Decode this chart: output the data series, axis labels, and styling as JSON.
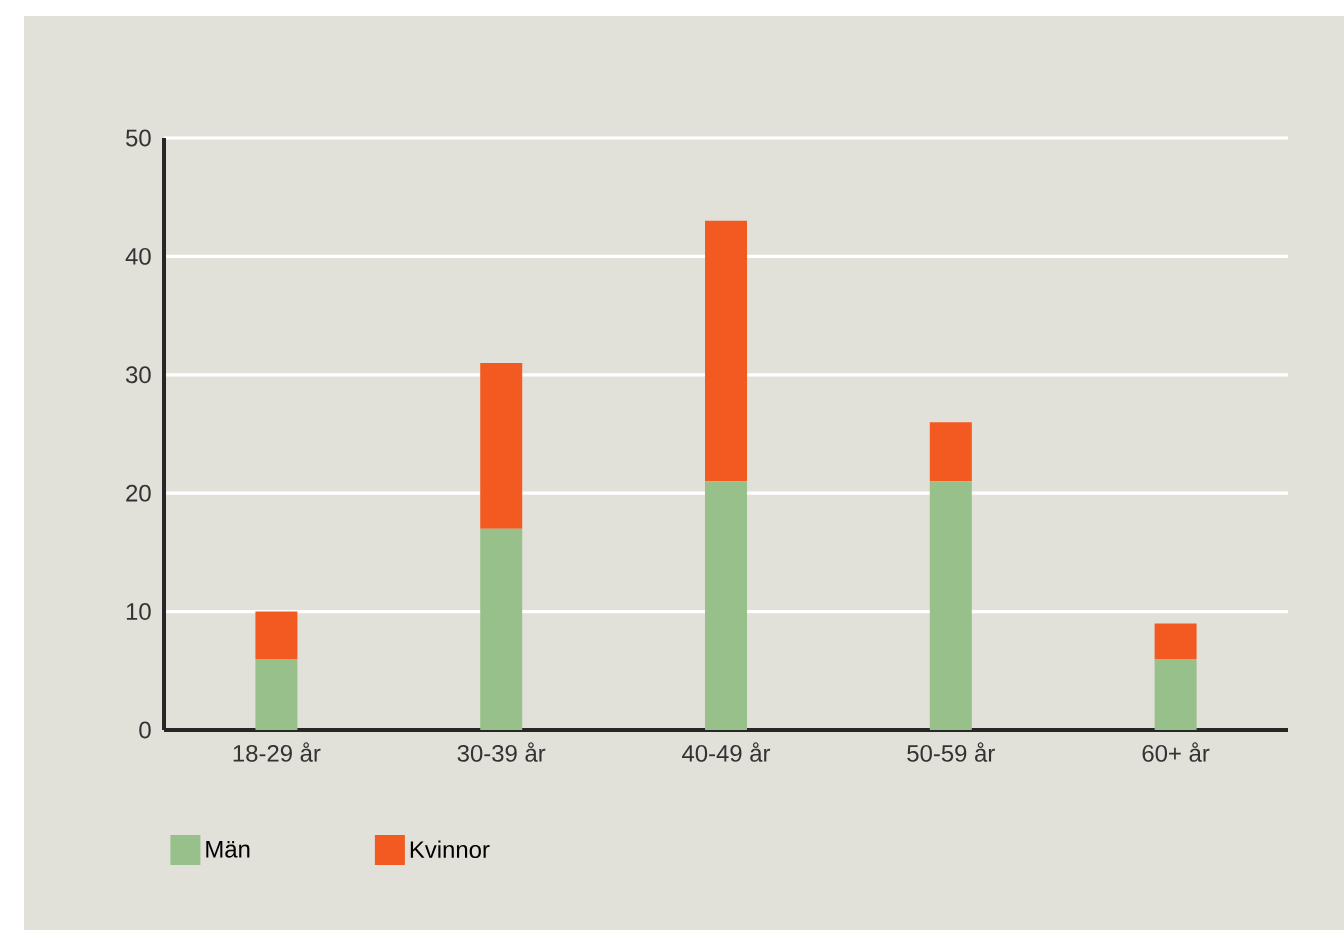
{
  "chart_data": {
    "type": "bar",
    "stacked": true,
    "categories": [
      "18-29 år",
      "30-39 år",
      "40-49 år",
      "50-59 år",
      "60+ år"
    ],
    "series": [
      {
        "name": "Män",
        "color": "#98c08a",
        "values": [
          6,
          17,
          21,
          21,
          6
        ]
      },
      {
        "name": "Kvinnor",
        "color": "#f25a21",
        "values": [
          4,
          14,
          22,
          5,
          3
        ]
      }
    ],
    "ylim": [
      0,
      50
    ],
    "yticks": [
      0,
      10,
      20,
      30,
      40,
      50
    ],
    "grid": "y",
    "legend": "bottom left"
  }
}
